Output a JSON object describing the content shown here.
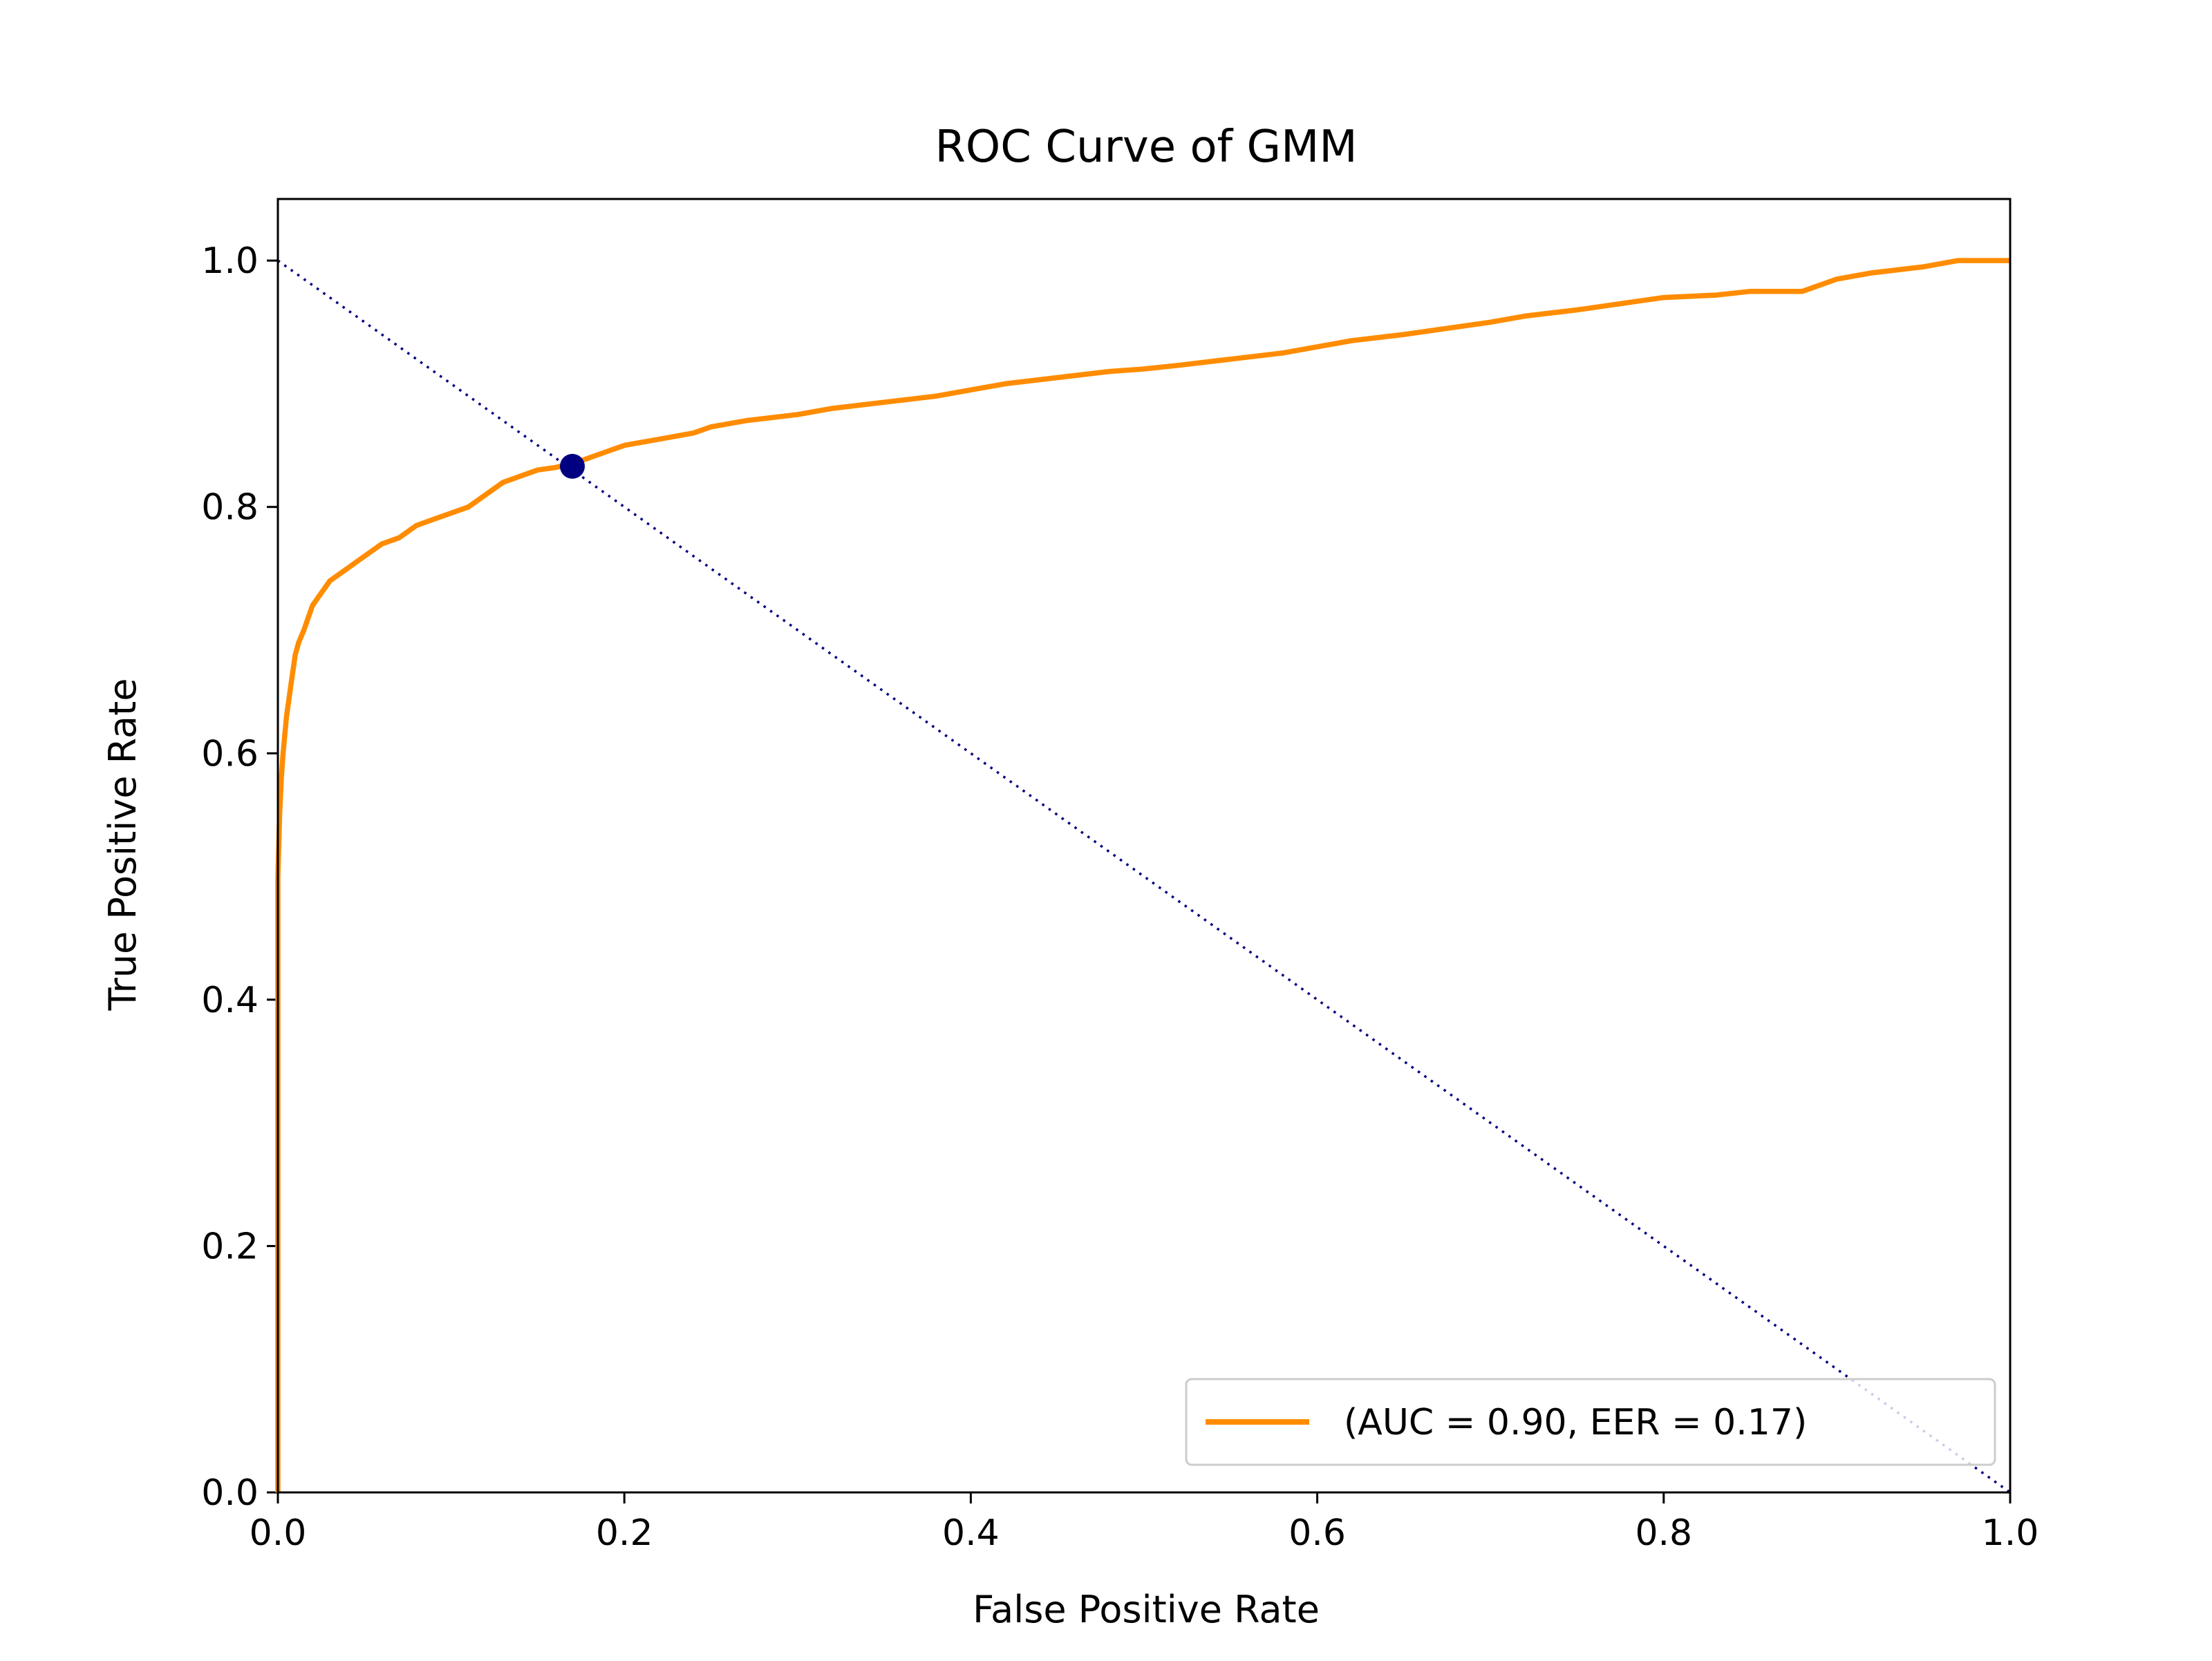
{
  "chart_data": {
    "type": "line",
    "title": "ROC Curve of GMM",
    "xlabel": "False Positive Rate",
    "ylabel": "True Positive Rate",
    "xlim": [
      0.0,
      1.0
    ],
    "ylim": [
      0.0,
      1.05
    ],
    "x_ticks": [
      0.0,
      0.2,
      0.4,
      0.6,
      0.8,
      1.0
    ],
    "x_tick_labels": [
      "0.0",
      "0.2",
      "0.4",
      "0.6",
      "0.8",
      "1.0"
    ],
    "y_ticks": [
      0.0,
      0.2,
      0.4,
      0.6,
      0.8,
      1.0
    ],
    "y_tick_labels": [
      "0.0",
      "0.2",
      "0.4",
      "0.6",
      "0.8",
      "1.0"
    ],
    "grid": false,
    "legend_position": "lower-right",
    "series": [
      {
        "name": "(AUC = 0.90, EER = 0.17)",
        "color": "#ff8c00",
        "style": "solid",
        "x": [
          0.0,
          0.0,
          0.001,
          0.002,
          0.003,
          0.005,
          0.008,
          0.01,
          0.012,
          0.015,
          0.02,
          0.025,
          0.03,
          0.04,
          0.05,
          0.06,
          0.07,
          0.08,
          0.09,
          0.1,
          0.11,
          0.12,
          0.13,
          0.14,
          0.15,
          0.16,
          0.17,
          0.18,
          0.19,
          0.2,
          0.22,
          0.24,
          0.25,
          0.27,
          0.3,
          0.32,
          0.35,
          0.38,
          0.4,
          0.42,
          0.45,
          0.48,
          0.5,
          0.52,
          0.55,
          0.58,
          0.6,
          0.62,
          0.65,
          0.7,
          0.72,
          0.75,
          0.8,
          0.83,
          0.85,
          0.88,
          0.9,
          0.92,
          0.95,
          0.97,
          1.0
        ],
        "y": [
          0.0,
          0.5,
          0.55,
          0.58,
          0.6,
          0.63,
          0.66,
          0.68,
          0.69,
          0.7,
          0.72,
          0.73,
          0.74,
          0.75,
          0.76,
          0.77,
          0.775,
          0.785,
          0.79,
          0.795,
          0.8,
          0.81,
          0.82,
          0.825,
          0.83,
          0.832,
          0.835,
          0.84,
          0.845,
          0.85,
          0.855,
          0.86,
          0.865,
          0.87,
          0.875,
          0.88,
          0.885,
          0.89,
          0.895,
          0.9,
          0.905,
          0.91,
          0.912,
          0.915,
          0.92,
          0.925,
          0.93,
          0.935,
          0.94,
          0.95,
          0.955,
          0.96,
          0.97,
          0.972,
          0.975,
          0.975,
          0.985,
          0.99,
          0.995,
          1.0,
          1.0
        ]
      },
      {
        "name": "",
        "color": "#000080",
        "style": "dotted",
        "x": [
          0.0,
          1.0
        ],
        "y": [
          1.0,
          0.0
        ]
      }
    ],
    "markers": [
      {
        "x": 0.17,
        "y": 0.833,
        "color": "#000080"
      }
    ]
  }
}
